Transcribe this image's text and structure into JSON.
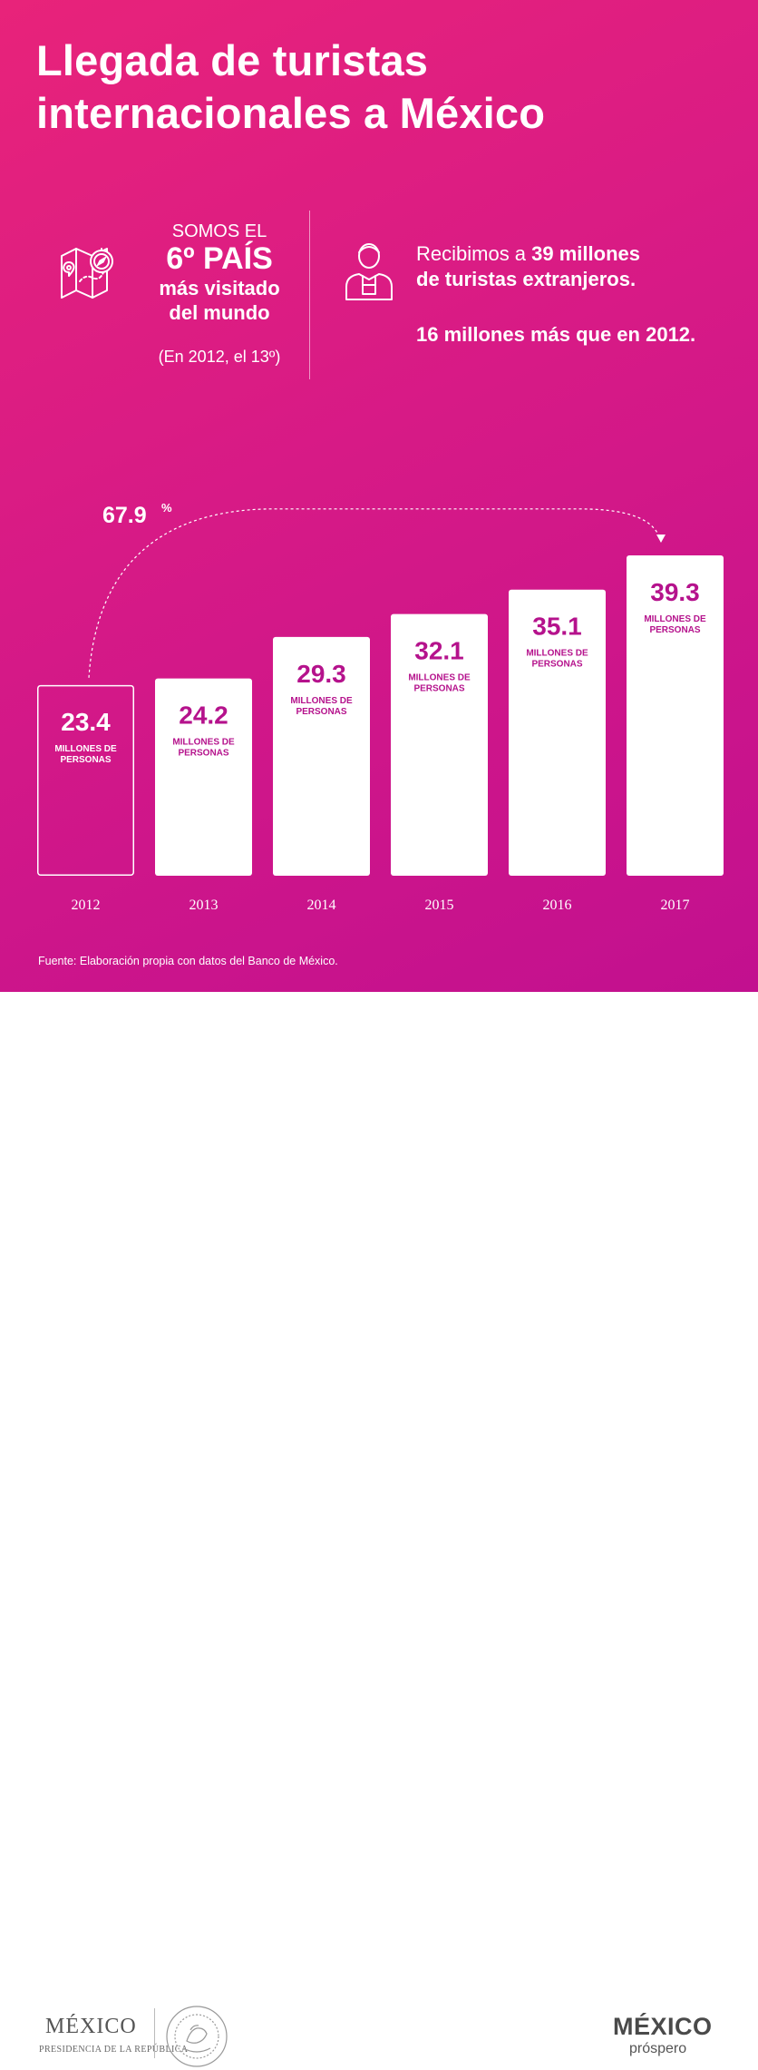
{
  "title": {
    "line1": "Llegada de turistas",
    "line2": "internacionales a México"
  },
  "rank_block": {
    "intro": "SOMOS EL",
    "rank": "6º PAÍS",
    "subtitle_line1": "más visitado",
    "subtitle_line2": "del mundo",
    "note": "(En 2012, el 13º)",
    "icon": "map-compass-icon"
  },
  "tourists_block": {
    "line1_prefix": "Recibimos a ",
    "line1_bold": "39 millones",
    "line2": "de turistas extranjeros.",
    "extra": "16 millones más que en 2012.",
    "icon": "tourist-person-icon"
  },
  "chart_data": {
    "type": "bar",
    "categories": [
      "2012",
      "2013",
      "2014",
      "2015",
      "2016",
      "2017"
    ],
    "values": [
      23.4,
      24.2,
      29.3,
      32.1,
      35.1,
      39.3
    ],
    "value_labels": [
      "23.4",
      "24.2",
      "29.3",
      "32.1",
      "35.1",
      "39.3"
    ],
    "unit_label_line1": "MILLONES DE",
    "unit_label_line2": "PERSONAS",
    "growth_annotation": "67.9",
    "growth_unit": "%",
    "highlighted_category": "2012",
    "ylim": [
      0,
      39.3
    ]
  },
  "source": "Fuente: Elaboración propia con datos del Banco de México.",
  "footer": {
    "gov_name": "MÉXICO",
    "gov_sub": "PRESIDENCIA DE LA REPÚBLICA",
    "seal_text": "ESTADOS UNIDOS MEXICANOS",
    "brand_name": "MÉXICO",
    "brand_sub": "próspero"
  },
  "colors": {
    "bar_fill": "#ffffff",
    "bar_text": "#b5128c",
    "highlight_bar_outline": "#ffffff",
    "bg_top": "#e8237a",
    "bg_bottom": "#c2108f"
  }
}
